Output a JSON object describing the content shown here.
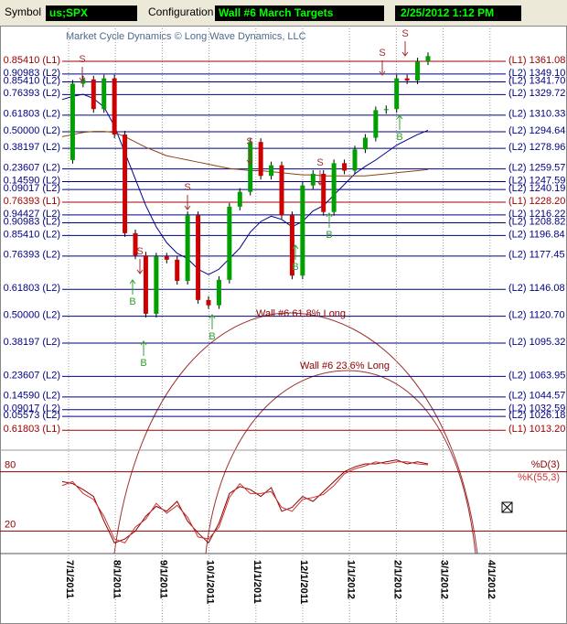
{
  "header": {
    "symbol_label": "Symbol",
    "symbol": "us;SPX",
    "config_label": "Configuration",
    "config": "Wall #6 March Targets",
    "datetime": "2/25/2012 1:12 PM"
  },
  "chart_data": [
    {
      "type": "candlestick",
      "watermark": "Market Cycle Dynamics © Long Wave Dynamics, LLC",
      "ylim": [
        1000,
        1393
      ],
      "date_labels": [
        "7/1/2011",
        "8/1/2011",
        "9/1/2011",
        "10/1/2011",
        "11/1/2011",
        "12/1/2011",
        "1/1/2012",
        "2/1/2012",
        "3/1/2012",
        "4/1/2012"
      ],
      "levels": [
        {
          "value": 1361.08,
          "label": "(L1) 1361.08",
          "fib": "0.85410 (L1)",
          "color": "#a00000"
        },
        {
          "value": 1349.1,
          "label": "(L2) 1349.10",
          "fib": "0.90983 (L2)",
          "color": "#000080"
        },
        {
          "value": 1341.7,
          "label": "(L2) 1341.70",
          "fib": "0.85410 (L2)",
          "color": "#000080"
        },
        {
          "value": 1329.72,
          "label": "(L2) 1329.72",
          "fib": "0.76393 (L2)",
          "color": "#000080"
        },
        {
          "value": 1310.33,
          "label": "(L2) 1310.33",
          "fib": "0.61803 (L2)",
          "color": "#000080"
        },
        {
          "value": 1294.64,
          "label": "(L2) 1294.64",
          "fib": "0.50000 (L2)",
          "color": "#000080"
        },
        {
          "value": 1278.96,
          "label": "(L2) 1278.96",
          "fib": "0.38197 (L2)",
          "color": "#000080"
        },
        {
          "value": 1259.57,
          "label": "(L2) 1259.57",
          "fib": "0.23607 (L2)",
          "color": "#000080"
        },
        {
          "value": 1247.59,
          "label": "(L2) 1247.59",
          "fib": "0.14590 (L2)",
          "color": "#000080"
        },
        {
          "value": 1240.19,
          "label": "(L2) 1240.19",
          "fib": "0.09017 (L2)",
          "color": "#000080"
        },
        {
          "value": 1228.2,
          "label": "(L1) 1228.20",
          "fib": "0.76393 (L1)",
          "color": "#a00000"
        },
        {
          "value": 1216.22,
          "label": "(L2) 1216.22",
          "fib": "0.94427 (L2)",
          "color": "#000080"
        },
        {
          "value": 1208.82,
          "label": "(L2) 1208.82",
          "fib": "0.90983 (L2)",
          "color": "#000080"
        },
        {
          "value": 1196.84,
          "label": "(L2) 1196.84",
          "fib": "0.85410 (L2)",
          "color": "#000080"
        },
        {
          "value": 1177.45,
          "label": "(L2) 1177.45",
          "fib": "0.76393 (L2)",
          "color": "#000080"
        },
        {
          "value": 1146.08,
          "label": "(L2) 1146.08",
          "fib": "0.61803 (L2)",
          "color": "#000080"
        },
        {
          "value": 1120.7,
          "label": "(L2) 1120.70",
          "fib": "0.50000 (L2)",
          "color": "#000080"
        },
        {
          "value": 1095.32,
          "label": "(L2) 1095.32",
          "fib": "0.38197 (L2)",
          "color": "#000080"
        },
        {
          "value": 1063.95,
          "label": "(L2) 1063.95",
          "fib": "0.23607 (L2)",
          "color": "#000080"
        },
        {
          "value": 1044.57,
          "label": "(L2) 1044.57",
          "fib": "0.14590 (L2)",
          "color": "#000080"
        },
        {
          "value": 1032.59,
          "label": "(L2) 1032.59",
          "fib": "0.09017 (L2)",
          "color": "#000080"
        },
        {
          "value": 1026.18,
          "label": "(L2) 1026.18",
          "fib": "0.05573 (L2)",
          "color": "#000080"
        },
        {
          "value": 1013.2,
          "label": "(L1) 1013.20",
          "fib": "0.61803 (L1)",
          "color": "#a00000"
        }
      ],
      "series": [
        {
          "color": "#00a000",
          "down_color": "#cc0000",
          "values": [
            1268,
            1340,
            1344,
            1316,
            1345,
            1292,
            1199,
            1178,
            1123,
            1177,
            1174,
            1154,
            1216,
            1136,
            1131,
            1155,
            1224,
            1238,
            1285,
            1253,
            1263,
            1216,
            1159,
            1244,
            1255,
            1219,
            1265,
            1258,
            1278,
            1289,
            1315,
            1316,
            1345,
            1343,
            1361,
            1366
          ]
        },
        {
          "color": "#00008b",
          "values": [
            1325,
            1328,
            1330,
            1326,
            1318,
            1300,
            1275,
            1250,
            1225,
            1205,
            1190,
            1180,
            1175,
            1165,
            1160,
            1165,
            1175,
            1185,
            1200,
            1210,
            1215,
            1212,
            1205,
            1210,
            1220,
            1225,
            1235,
            1245,
            1255,
            1262,
            1268,
            1275,
            1282,
            1287,
            1292,
            1296
          ]
        },
        {
          "color": "#8b4513",
          "values": [
            1290,
            1292,
            1294,
            1295,
            1295,
            1294,
            1290,
            1285,
            1280,
            1276,
            1272,
            1270,
            1268,
            1266,
            1264,
            1262,
            1260,
            1259,
            1258,
            1258,
            1257,
            1256,
            1255,
            1254,
            1254,
            1253,
            1253,
            1253,
            1253,
            1253,
            1254,
            1255,
            1256,
            1257,
            1258,
            1259
          ]
        }
      ],
      "signals": [
        "S",
        "S",
        "S",
        "S",
        "S",
        "S",
        "S",
        "B",
        "B",
        "B",
        "B",
        "B",
        "B"
      ],
      "annotations": [
        "Wall #6 61.8% Long",
        "Wall #6 23.6% Long"
      ]
    },
    {
      "type": "line",
      "ylim": [
        0,
        100
      ],
      "yticks": [
        20,
        80
      ],
      "series": [
        {
          "name": "%D(3)",
          "color": "#8b0000",
          "values": [
            70,
            68,
            62,
            55,
            30,
            8,
            12,
            20,
            35,
            45,
            40,
            50,
            30,
            18,
            8,
            28,
            58,
            65,
            62,
            55,
            64,
            40,
            44,
            55,
            50,
            60,
            70,
            80,
            85,
            88,
            88,
            90,
            92,
            88,
            90,
            88
          ]
        },
        {
          "name": "%K(55,3)",
          "color": "#cc3333",
          "values": [
            66,
            70,
            58,
            52,
            35,
            12,
            8,
            24,
            32,
            48,
            38,
            46,
            34,
            14,
            12,
            24,
            54,
            68,
            58,
            58,
            60,
            44,
            40,
            52,
            54,
            57,
            66,
            78,
            83,
            86,
            90,
            88,
            90,
            90,
            88,
            87
          ]
        }
      ]
    }
  ]
}
